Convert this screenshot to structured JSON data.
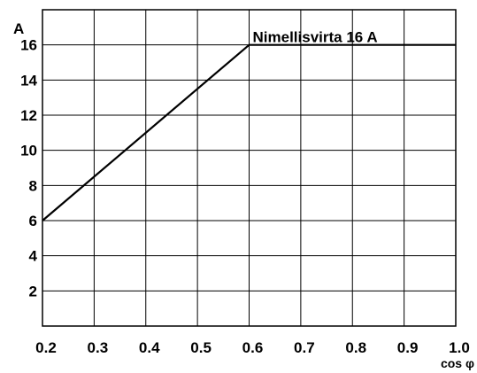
{
  "chart_data": {
    "type": "line",
    "xlabel": "cos φ",
    "ylabel": "A",
    "xlim": [
      0.2,
      1.0
    ],
    "ylim": [
      0,
      18
    ],
    "x_ticks": [
      "0.2",
      "0.3",
      "0.4",
      "0.5",
      "0.6",
      "0.7",
      "0.8",
      "0.9",
      "1.0"
    ],
    "y_ticks": [
      "2",
      "4",
      "6",
      "8",
      "10",
      "12",
      "14",
      "16"
    ],
    "grid": true,
    "series": [
      {
        "x": [
          0.2,
          0.6,
          1.0
        ],
        "y": [
          6,
          16,
          16
        ]
      }
    ],
    "annotation": "Nimellisvirta 16 A"
  }
}
